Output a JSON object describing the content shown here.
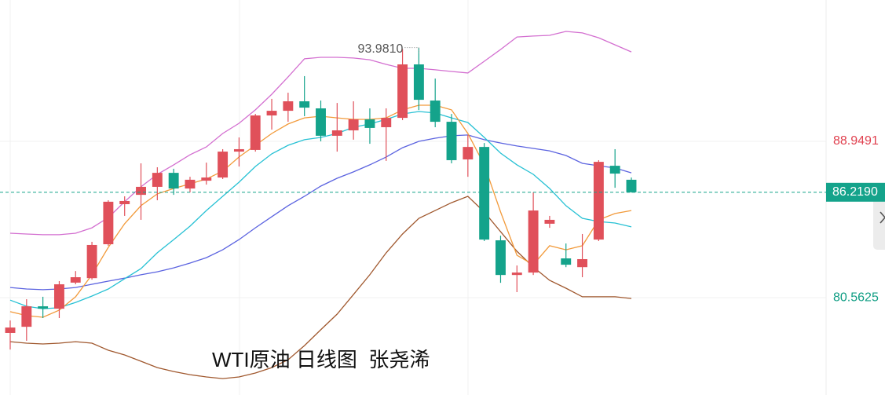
{
  "chart_data": {
    "type": "candlestick",
    "title": "WTI原油 日线图  张尧浠",
    "ylim": [
      75.34,
      96.535
    ],
    "yticks": [
      88.9491,
      80.5625
    ],
    "ytick_colors": [
      "#e0414f",
      "#0f9d83"
    ],
    "grid": true,
    "last_price": {
      "value": 86.219,
      "label": "86.2190"
    },
    "last_price_color": "#14a38b",
    "high_marker": {
      "value": 93.981,
      "label": "93.9810"
    },
    "up_color": "#e0505a",
    "down_color": "#14a38b",
    "ohlc": {
      "open": [
        78.67,
        79.0,
        80.1,
        79.97,
        81.37,
        81.61,
        83.43,
        85.58,
        86.08,
        86.51,
        87.26,
        86.42,
        86.84,
        87.01,
        88.4,
        88.49,
        90.34,
        90.59,
        91.1,
        90.72,
        89.25,
        89.54,
        90.13,
        89.71,
        90.21,
        93.08,
        91.14,
        90.0,
        87.98,
        88.65,
        83.64,
        81.78,
        81.91,
        84.53,
        82.67,
        82.2,
        83.68,
        87.64,
        86.89
      ],
      "high": [
        79.34,
        80.48,
        80.61,
        81.45,
        81.99,
        83.56,
        85.79,
        86.0,
        87.77,
        87.56,
        87.48,
        87.05,
        87.81,
        88.53,
        89.16,
        90.42,
        91.23,
        91.56,
        92.45,
        91.14,
        91.01,
        91.1,
        90.72,
        90.72,
        93.9,
        93.981,
        92.32,
        90.42,
        89.29,
        88.86,
        83.89,
        82.29,
        86.21,
        84.95,
        83.47,
        83.98,
        87.94,
        88.53,
        87.01
      ],
      "low": [
        77.78,
        78.25,
        79.47,
        79.47,
        81.28,
        81.53,
        83.35,
        84.95,
        84.74,
        85.79,
        86.08,
        86.21,
        86.63,
        86.93,
        87.6,
        88.4,
        89.58,
        90.0,
        90.3,
        88.95,
        88.4,
        89.04,
        88.82,
        87.9,
        90.09,
        90.63,
        89.71,
        87.77,
        87.05,
        83.6,
        81.36,
        80.86,
        81.78,
        84.31,
        82.2,
        81.66,
        83.6,
        86.46,
        86.2
      ],
      "close": [
        78.96,
        80.1,
        79.97,
        81.28,
        81.66,
        83.39,
        85.71,
        85.75,
        86.51,
        87.26,
        86.42,
        86.89,
        87.01,
        88.4,
        88.53,
        90.34,
        90.59,
        91.1,
        90.76,
        89.25,
        89.54,
        90.13,
        89.67,
        90.21,
        93.08,
        91.18,
        90.0,
        87.94,
        88.65,
        83.68,
        81.78,
        81.91,
        85.24,
        84.74,
        82.33,
        82.63,
        87.85,
        87.22,
        86.219
      ]
    },
    "lines": [
      {
        "color": "#d36fd0",
        "values": [
          84.02,
          83.98,
          83.94,
          83.94,
          84.02,
          84.31,
          84.86,
          85.71,
          86.51,
          87.18,
          87.69,
          88.23,
          88.65,
          89.37,
          89.92,
          90.64,
          91.48,
          92.41,
          93.38,
          93.46,
          93.46,
          93.42,
          93.33,
          93.08,
          92.87,
          92.87,
          92.79,
          92.7,
          92.62,
          93.25,
          93.88,
          94.55,
          94.6,
          94.64,
          94.85,
          94.77,
          94.51,
          94.13,
          93.75
        ]
      },
      {
        "color": "#a0582e",
        "values": [
          78.2,
          78.12,
          78.08,
          78.12,
          78.2,
          78.12,
          77.74,
          77.49,
          77.15,
          76.81,
          76.6,
          76.43,
          76.31,
          76.22,
          76.31,
          76.52,
          76.81,
          77.23,
          77.99,
          78.84,
          79.68,
          80.73,
          81.79,
          82.97,
          83.98,
          84.82,
          85.24,
          85.66,
          86.0,
          85.16,
          84.1,
          83.05,
          82.21,
          81.49,
          81.07,
          80.61,
          80.61,
          80.61,
          80.52
        ]
      },
      {
        "color": "#5b63e0",
        "values": [
          81.11,
          81.03,
          80.99,
          81.03,
          81.11,
          81.28,
          81.45,
          81.61,
          81.79,
          81.95,
          82.16,
          82.42,
          82.71,
          83.13,
          83.68,
          84.31,
          84.91,
          85.5,
          86.0,
          86.55,
          86.97,
          87.31,
          87.69,
          88.11,
          88.61,
          88.95,
          89.12,
          89.25,
          89.29,
          89.04,
          88.86,
          88.7,
          88.57,
          88.44,
          88.19,
          87.77,
          87.64,
          87.52,
          87.26
        ]
      },
      {
        "color": "#27c1d4",
        "values": [
          80.43,
          80.1,
          79.97,
          80.02,
          80.31,
          80.65,
          81.03,
          81.58,
          82.12,
          82.97,
          83.68,
          84.4,
          85.24,
          86.0,
          86.76,
          87.6,
          88.28,
          88.74,
          89.04,
          89.16,
          89.37,
          89.71,
          89.88,
          90.13,
          90.42,
          90.55,
          90.47,
          90.21,
          89.96,
          89.16,
          88.32,
          87.69,
          87.18,
          86.42,
          85.5,
          84.82,
          84.65,
          84.57,
          84.36
        ]
      },
      {
        "color": "#f29a3a",
        "values": [
          79.81,
          79.6,
          79.51,
          79.89,
          80.61,
          81.79,
          83.26,
          84.53,
          85.5,
          86.13,
          86.42,
          86.67,
          86.93,
          87.35,
          88.11,
          88.74,
          89.37,
          89.88,
          90.21,
          90.3,
          90.21,
          90.13,
          90.13,
          90.21,
          90.64,
          90.89,
          90.89,
          90.64,
          89.37,
          87.69,
          85.16,
          82.84,
          82.33,
          83.35,
          83.13,
          83.35,
          84.74,
          85.08,
          85.24
        ]
      }
    ]
  }
}
